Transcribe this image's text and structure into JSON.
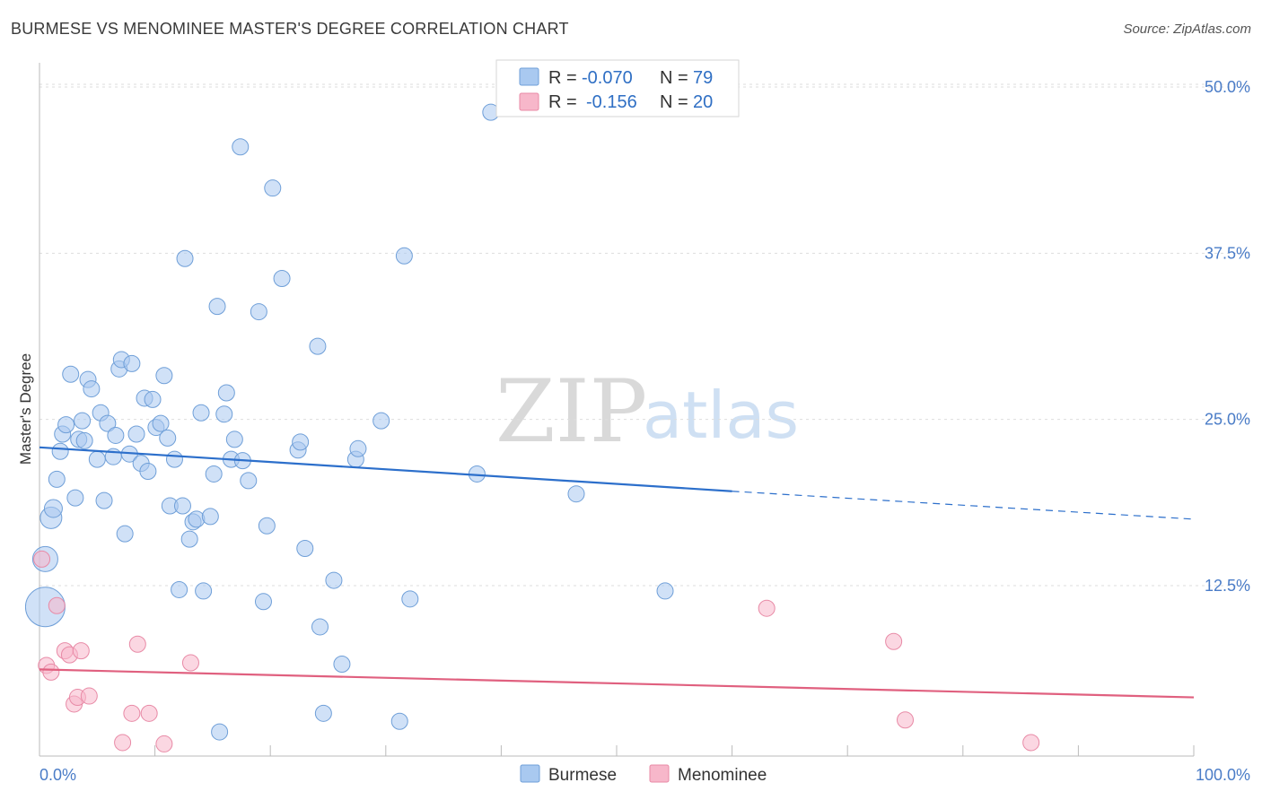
{
  "title": "BURMESE VS MENOMINEE MASTER'S DEGREE CORRELATION CHART",
  "source": "Source: ZipAtlas.com",
  "watermark": {
    "zip": "ZIP",
    "atlas": "atlas"
  },
  "chart_data": {
    "type": "scatter",
    "xlabel": "",
    "ylabel": "Master's Degree",
    "xlim": [
      0,
      100
    ],
    "ylim": [
      0,
      52
    ],
    "x_tick_labels": [
      "0.0%",
      "100.0%"
    ],
    "y_ticks": [
      {
        "value": 12.5,
        "label": "12.5%"
      },
      {
        "value": 25.0,
        "label": "25.0%"
      },
      {
        "value": 37.5,
        "label": "37.5%"
      },
      {
        "value": 50.0,
        "label": "50.0%"
      }
    ],
    "grid": true,
    "legend": {
      "placement": "top-center",
      "rows": [
        {
          "r_label": "R =",
          "r_value": "-0.070",
          "n_label": "N =",
          "n_value": "79",
          "color": "#a9c9f0"
        },
        {
          "r_label": "R =",
          "r_value": "-0.156",
          "n_label": "N =",
          "n_value": "20",
          "color": "#f7b7ca"
        }
      ]
    },
    "series": [
      {
        "name": "Burmese",
        "color": "#a9c9f0",
        "stroke": "#6f9fd8",
        "line_color": "#2c6fcb",
        "trend": {
          "x0": 0,
          "y0": 22.9,
          "x1": 60,
          "y1": 19.6,
          "dash_x1": 100,
          "dash_y1": 17.5
        },
        "points": [
          [
            0.5,
            10.9,
            22
          ],
          [
            0.5,
            14.5,
            14
          ],
          [
            1.0,
            17.6,
            12
          ],
          [
            1.2,
            18.3,
            10
          ],
          [
            1.5,
            20.5,
            9
          ],
          [
            1.8,
            22.6,
            9
          ],
          [
            2.0,
            23.9,
            9
          ],
          [
            2.3,
            24.6,
            9
          ],
          [
            2.7,
            28.4,
            9
          ],
          [
            3.1,
            19.1,
            9
          ],
          [
            3.4,
            23.5,
            9
          ],
          [
            3.7,
            24.9,
            9
          ],
          [
            3.9,
            23.4,
            9
          ],
          [
            4.2,
            28.0,
            9
          ],
          [
            4.5,
            27.3,
            9
          ],
          [
            5.0,
            22.0,
            9
          ],
          [
            5.3,
            25.5,
            9
          ],
          [
            5.6,
            18.9,
            9
          ],
          [
            5.9,
            24.7,
            9
          ],
          [
            6.4,
            22.2,
            9
          ],
          [
            6.6,
            23.8,
            9
          ],
          [
            6.9,
            28.8,
            9
          ],
          [
            7.1,
            29.5,
            9
          ],
          [
            7.4,
            16.4,
            9
          ],
          [
            7.8,
            22.4,
            9
          ],
          [
            8.0,
            29.2,
            9
          ],
          [
            8.4,
            23.9,
            9
          ],
          [
            8.8,
            21.7,
            9
          ],
          [
            9.1,
            26.6,
            9
          ],
          [
            9.4,
            21.1,
            9
          ],
          [
            9.8,
            26.5,
            9
          ],
          [
            10.1,
            24.4,
            9
          ],
          [
            10.5,
            24.7,
            9
          ],
          [
            10.8,
            28.3,
            9
          ],
          [
            11.1,
            23.6,
            9
          ],
          [
            11.3,
            18.5,
            9
          ],
          [
            11.7,
            22.0,
            9
          ],
          [
            12.1,
            12.2,
            9
          ],
          [
            12.4,
            18.5,
            9
          ],
          [
            12.6,
            37.1,
            9
          ],
          [
            13.0,
            16.0,
            9
          ],
          [
            13.3,
            17.3,
            9
          ],
          [
            13.6,
            17.5,
            9
          ],
          [
            14.0,
            25.5,
            9
          ],
          [
            14.2,
            12.1,
            9
          ],
          [
            14.8,
            17.7,
            9
          ],
          [
            15.1,
            20.9,
            9
          ],
          [
            15.4,
            33.5,
            9
          ],
          [
            15.6,
            1.5,
            9
          ],
          [
            16.0,
            25.4,
            9
          ],
          [
            16.2,
            27.0,
            9
          ],
          [
            16.6,
            22.0,
            9
          ],
          [
            16.9,
            23.5,
            9
          ],
          [
            17.4,
            45.5,
            9
          ],
          [
            17.6,
            21.9,
            9
          ],
          [
            18.1,
            20.4,
            9
          ],
          [
            19.0,
            33.1,
            9
          ],
          [
            19.4,
            11.3,
            9
          ],
          [
            19.7,
            17.0,
            9
          ],
          [
            20.2,
            42.4,
            9
          ],
          [
            21.0,
            35.6,
            9
          ],
          [
            22.4,
            22.7,
            9
          ],
          [
            22.6,
            23.3,
            9
          ],
          [
            23.0,
            15.3,
            9
          ],
          [
            24.1,
            30.5,
            9
          ],
          [
            24.3,
            9.4,
            9
          ],
          [
            24.6,
            2.9,
            9
          ],
          [
            25.5,
            12.9,
            9
          ],
          [
            26.2,
            6.6,
            9
          ],
          [
            27.4,
            22.0,
            9
          ],
          [
            27.6,
            22.8,
            9
          ],
          [
            29.6,
            24.9,
            9
          ],
          [
            31.2,
            2.3,
            9
          ],
          [
            31.6,
            37.3,
            9
          ],
          [
            32.1,
            11.5,
            9
          ],
          [
            37.9,
            20.9,
            9
          ],
          [
            39.1,
            48.1,
            9
          ],
          [
            46.5,
            19.4,
            9
          ],
          [
            54.2,
            12.1,
            9
          ]
        ]
      },
      {
        "name": "Menominee",
        "color": "#f7b7ca",
        "stroke": "#e88aa6",
        "line_color": "#e0607f",
        "trend": {
          "x0": 0,
          "y0": 6.2,
          "x1": 100,
          "y1": 4.1
        },
        "points": [
          [
            0.2,
            14.5,
            9
          ],
          [
            0.6,
            6.5,
            9
          ],
          [
            1.0,
            6.0,
            9
          ],
          [
            1.5,
            11.0,
            9
          ],
          [
            2.2,
            7.6,
            9
          ],
          [
            2.6,
            7.3,
            9
          ],
          [
            3.0,
            3.6,
            9
          ],
          [
            3.3,
            4.1,
            9
          ],
          [
            3.6,
            7.6,
            9
          ],
          [
            4.3,
            4.2,
            9
          ],
          [
            7.2,
            0.7,
            9
          ],
          [
            8.0,
            2.9,
            9
          ],
          [
            8.5,
            8.1,
            9
          ],
          [
            9.5,
            2.9,
            9
          ],
          [
            10.8,
            0.6,
            9
          ],
          [
            13.1,
            6.7,
            9
          ],
          [
            63.0,
            10.8,
            9
          ],
          [
            74.0,
            8.3,
            9
          ],
          [
            75.0,
            2.4,
            9
          ],
          [
            85.9,
            0.7,
            9
          ]
        ]
      }
    ]
  }
}
